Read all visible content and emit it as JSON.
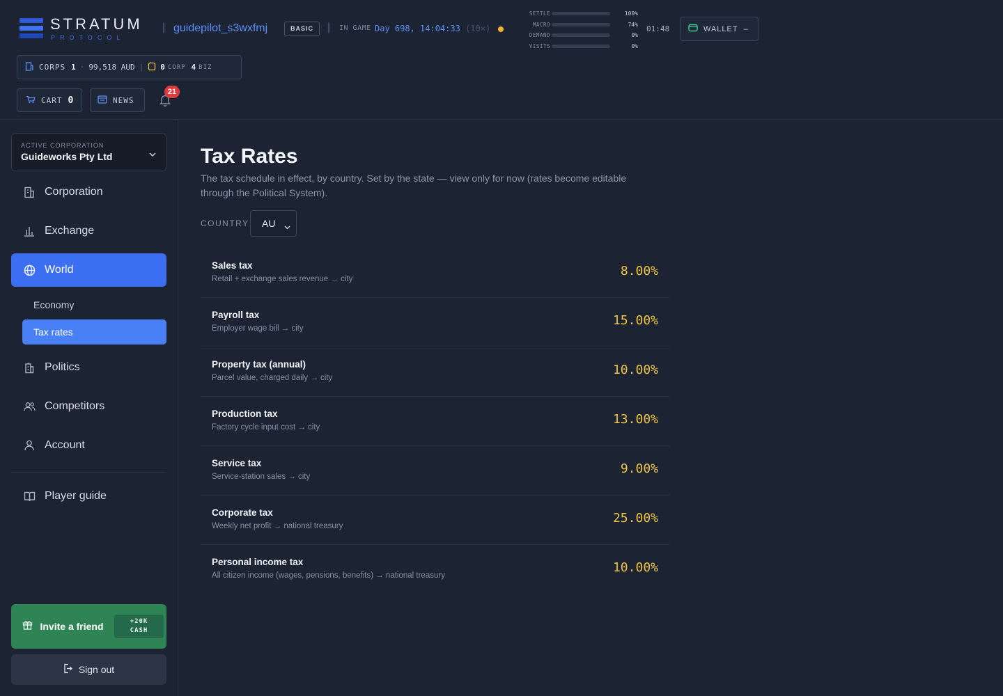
{
  "header": {
    "logo_title": "STRATUM",
    "logo_subtitle": "PROTOCOL",
    "username": "guidepilot_s3wxfmj",
    "plan": "BASIC",
    "ingame_label": "IN GAME",
    "game_time": "Day 698, 14:04:33",
    "speed": "(10×)",
    "meters": [
      {
        "label": "SETTLE",
        "value": "100%",
        "fill": 1.0,
        "color": "#3ccf8e"
      },
      {
        "label": "MACRO",
        "value": "74%",
        "fill": 0.74,
        "color": "#f0c342"
      },
      {
        "label": "DEMAND",
        "value": "0%",
        "fill": 0,
        "color": "#3ccf8e"
      },
      {
        "label": "VISITS",
        "value": "0%",
        "fill": 0,
        "color": "#3ccf8e"
      }
    ],
    "clock": "01:48",
    "wallet_label": "WALLET",
    "wallet_value": "–",
    "stats": {
      "corps_label": "CORPS",
      "corps_count": "1",
      "balance": "99,518 AUD",
      "corp_tokens": "0",
      "corp_label": "CORP",
      "biz_tokens": "4",
      "biz_label": "BIZ"
    },
    "cart_label": "CART",
    "cart_count": "0",
    "news_label": "NEWS",
    "notifications_count": "21"
  },
  "sidebar": {
    "corp_caption": "ACTIVE CORPORATION",
    "corp_name": "Guideworks Pty Ltd",
    "nav": {
      "corporation": "Corporation",
      "exchange": "Exchange",
      "world": "World",
      "economy": "Economy",
      "tax_rates": "Tax rates",
      "politics": "Politics",
      "competitors": "Competitors",
      "account": "Account",
      "player_guide": "Player guide"
    },
    "invite_label": "Invite a friend",
    "invite_bonus_line1": "+20K",
    "invite_bonus_line2": "CASH",
    "signout_label": "Sign out"
  },
  "main": {
    "title": "Tax Rates",
    "description": "The tax schedule in effect, by country. Set by the state — view only for now (rates become editable through the Political System).",
    "country_label": "COUNTRY",
    "country_value": "AU",
    "taxes": [
      {
        "name": "Sales tax",
        "note": "Retail + exchange sales revenue → city",
        "rate": "8.00%"
      },
      {
        "name": "Payroll tax",
        "note": "Employer wage bill → city",
        "rate": "15.00%"
      },
      {
        "name": "Property tax (annual)",
        "note": "Parcel value, charged daily → city",
        "rate": "10.00%"
      },
      {
        "name": "Production tax",
        "note": "Factory cycle input cost → city",
        "rate": "13.00%"
      },
      {
        "name": "Service tax",
        "note": "Service-station sales → city",
        "rate": "9.00%"
      },
      {
        "name": "Corporate tax",
        "note": "Weekly net profit → national treasury",
        "rate": "25.00%"
      },
      {
        "name": "Personal income tax",
        "note": "All citizen income (wages, pensions, benefits) → national treasury",
        "rate": "10.00%"
      }
    ]
  }
}
